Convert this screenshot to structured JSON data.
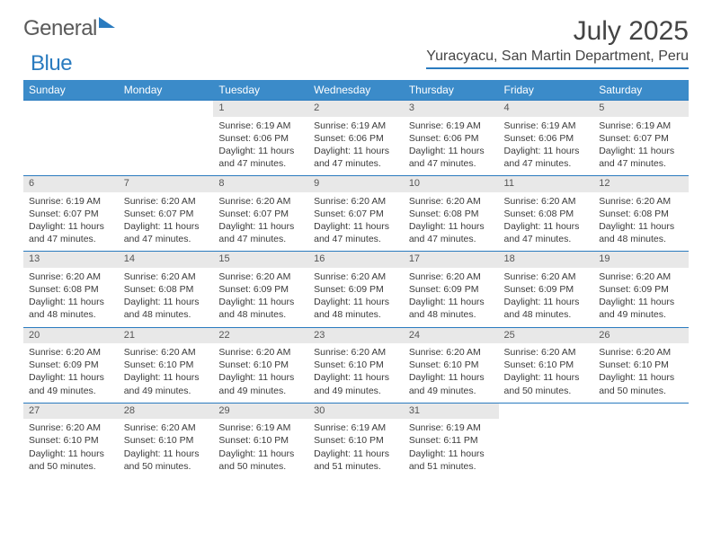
{
  "logo": {
    "word1": "General",
    "word2": "Blue"
  },
  "title": "July 2025",
  "location": "Yuracyacu, San Martin Department, Peru",
  "colors": {
    "header_bg": "#3b8bc9",
    "header_text": "#ffffff",
    "rule": "#2a7bbf",
    "daynum_bg": "#e8e8e8",
    "text": "#3a3a3a",
    "logo_gray": "#5a5a5a",
    "logo_blue": "#2a7bbf"
  },
  "weekdays": [
    "Sunday",
    "Monday",
    "Tuesday",
    "Wednesday",
    "Thursday",
    "Friday",
    "Saturday"
  ],
  "weeks": [
    [
      {
        "n": "",
        "sunrise": "",
        "sunset": "",
        "daylight": ""
      },
      {
        "n": "",
        "sunrise": "",
        "sunset": "",
        "daylight": ""
      },
      {
        "n": "1",
        "sunrise": "Sunrise: 6:19 AM",
        "sunset": "Sunset: 6:06 PM",
        "daylight": "Daylight: 11 hours and 47 minutes."
      },
      {
        "n": "2",
        "sunrise": "Sunrise: 6:19 AM",
        "sunset": "Sunset: 6:06 PM",
        "daylight": "Daylight: 11 hours and 47 minutes."
      },
      {
        "n": "3",
        "sunrise": "Sunrise: 6:19 AM",
        "sunset": "Sunset: 6:06 PM",
        "daylight": "Daylight: 11 hours and 47 minutes."
      },
      {
        "n": "4",
        "sunrise": "Sunrise: 6:19 AM",
        "sunset": "Sunset: 6:06 PM",
        "daylight": "Daylight: 11 hours and 47 minutes."
      },
      {
        "n": "5",
        "sunrise": "Sunrise: 6:19 AM",
        "sunset": "Sunset: 6:07 PM",
        "daylight": "Daylight: 11 hours and 47 minutes."
      }
    ],
    [
      {
        "n": "6",
        "sunrise": "Sunrise: 6:19 AM",
        "sunset": "Sunset: 6:07 PM",
        "daylight": "Daylight: 11 hours and 47 minutes."
      },
      {
        "n": "7",
        "sunrise": "Sunrise: 6:20 AM",
        "sunset": "Sunset: 6:07 PM",
        "daylight": "Daylight: 11 hours and 47 minutes."
      },
      {
        "n": "8",
        "sunrise": "Sunrise: 6:20 AM",
        "sunset": "Sunset: 6:07 PM",
        "daylight": "Daylight: 11 hours and 47 minutes."
      },
      {
        "n": "9",
        "sunrise": "Sunrise: 6:20 AM",
        "sunset": "Sunset: 6:07 PM",
        "daylight": "Daylight: 11 hours and 47 minutes."
      },
      {
        "n": "10",
        "sunrise": "Sunrise: 6:20 AM",
        "sunset": "Sunset: 6:08 PM",
        "daylight": "Daylight: 11 hours and 47 minutes."
      },
      {
        "n": "11",
        "sunrise": "Sunrise: 6:20 AM",
        "sunset": "Sunset: 6:08 PM",
        "daylight": "Daylight: 11 hours and 47 minutes."
      },
      {
        "n": "12",
        "sunrise": "Sunrise: 6:20 AM",
        "sunset": "Sunset: 6:08 PM",
        "daylight": "Daylight: 11 hours and 48 minutes."
      }
    ],
    [
      {
        "n": "13",
        "sunrise": "Sunrise: 6:20 AM",
        "sunset": "Sunset: 6:08 PM",
        "daylight": "Daylight: 11 hours and 48 minutes."
      },
      {
        "n": "14",
        "sunrise": "Sunrise: 6:20 AM",
        "sunset": "Sunset: 6:08 PM",
        "daylight": "Daylight: 11 hours and 48 minutes."
      },
      {
        "n": "15",
        "sunrise": "Sunrise: 6:20 AM",
        "sunset": "Sunset: 6:09 PM",
        "daylight": "Daylight: 11 hours and 48 minutes."
      },
      {
        "n": "16",
        "sunrise": "Sunrise: 6:20 AM",
        "sunset": "Sunset: 6:09 PM",
        "daylight": "Daylight: 11 hours and 48 minutes."
      },
      {
        "n": "17",
        "sunrise": "Sunrise: 6:20 AM",
        "sunset": "Sunset: 6:09 PM",
        "daylight": "Daylight: 11 hours and 48 minutes."
      },
      {
        "n": "18",
        "sunrise": "Sunrise: 6:20 AM",
        "sunset": "Sunset: 6:09 PM",
        "daylight": "Daylight: 11 hours and 48 minutes."
      },
      {
        "n": "19",
        "sunrise": "Sunrise: 6:20 AM",
        "sunset": "Sunset: 6:09 PM",
        "daylight": "Daylight: 11 hours and 49 minutes."
      }
    ],
    [
      {
        "n": "20",
        "sunrise": "Sunrise: 6:20 AM",
        "sunset": "Sunset: 6:09 PM",
        "daylight": "Daylight: 11 hours and 49 minutes."
      },
      {
        "n": "21",
        "sunrise": "Sunrise: 6:20 AM",
        "sunset": "Sunset: 6:10 PM",
        "daylight": "Daylight: 11 hours and 49 minutes."
      },
      {
        "n": "22",
        "sunrise": "Sunrise: 6:20 AM",
        "sunset": "Sunset: 6:10 PM",
        "daylight": "Daylight: 11 hours and 49 minutes."
      },
      {
        "n": "23",
        "sunrise": "Sunrise: 6:20 AM",
        "sunset": "Sunset: 6:10 PM",
        "daylight": "Daylight: 11 hours and 49 minutes."
      },
      {
        "n": "24",
        "sunrise": "Sunrise: 6:20 AM",
        "sunset": "Sunset: 6:10 PM",
        "daylight": "Daylight: 11 hours and 49 minutes."
      },
      {
        "n": "25",
        "sunrise": "Sunrise: 6:20 AM",
        "sunset": "Sunset: 6:10 PM",
        "daylight": "Daylight: 11 hours and 50 minutes."
      },
      {
        "n": "26",
        "sunrise": "Sunrise: 6:20 AM",
        "sunset": "Sunset: 6:10 PM",
        "daylight": "Daylight: 11 hours and 50 minutes."
      }
    ],
    [
      {
        "n": "27",
        "sunrise": "Sunrise: 6:20 AM",
        "sunset": "Sunset: 6:10 PM",
        "daylight": "Daylight: 11 hours and 50 minutes."
      },
      {
        "n": "28",
        "sunrise": "Sunrise: 6:20 AM",
        "sunset": "Sunset: 6:10 PM",
        "daylight": "Daylight: 11 hours and 50 minutes."
      },
      {
        "n": "29",
        "sunrise": "Sunrise: 6:19 AM",
        "sunset": "Sunset: 6:10 PM",
        "daylight": "Daylight: 11 hours and 50 minutes."
      },
      {
        "n": "30",
        "sunrise": "Sunrise: 6:19 AM",
        "sunset": "Sunset: 6:10 PM",
        "daylight": "Daylight: 11 hours and 51 minutes."
      },
      {
        "n": "31",
        "sunrise": "Sunrise: 6:19 AM",
        "sunset": "Sunset: 6:11 PM",
        "daylight": "Daylight: 11 hours and 51 minutes."
      },
      {
        "n": "",
        "sunrise": "",
        "sunset": "",
        "daylight": ""
      },
      {
        "n": "",
        "sunrise": "",
        "sunset": "",
        "daylight": ""
      }
    ]
  ]
}
